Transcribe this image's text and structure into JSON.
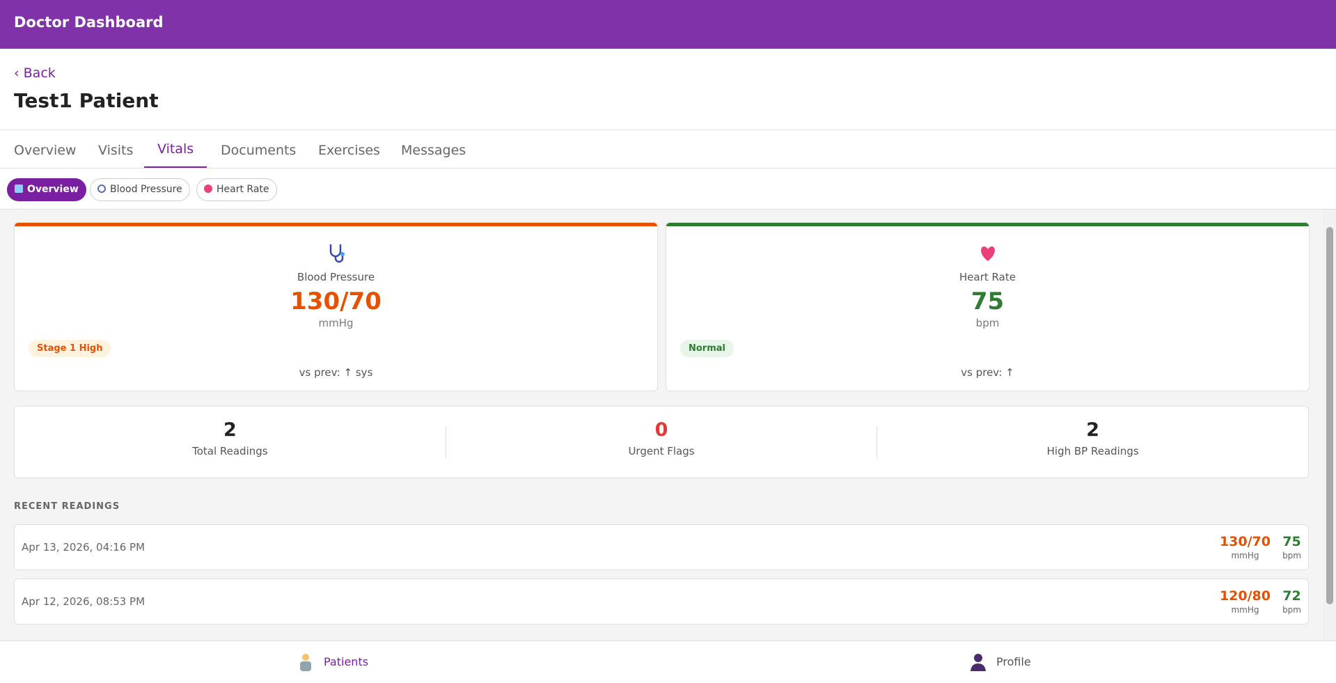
{
  "header": {
    "title": "Doctor Dashboard"
  },
  "back": "‹ Back",
  "patient_name": "Test1 Patient",
  "tabs": [
    "Overview",
    "Visits",
    "Vitals",
    "Documents",
    "Exercises",
    "Messages"
  ],
  "active_tab": "Vitals",
  "chips": [
    "Overview",
    "Blood Pressure",
    "Heart Rate"
  ],
  "cards": [
    {
      "label": "Blood Pressure",
      "value": "130/70",
      "unit": "mmHg",
      "badge": "Stage 1 High",
      "compare": "vs prev: ↑ sys"
    },
    {
      "label": "Heart Rate",
      "value": "75",
      "unit": "bpm",
      "badge": "Normal",
      "compare": "vs prev: ↑"
    }
  ],
  "stats": [
    {
      "value": "2",
      "label": "Total Readings"
    },
    {
      "value": "0",
      "label": "Urgent Flags"
    },
    {
      "value": "2",
      "label": "High BP Readings"
    }
  ],
  "recent_title": "RECENT READINGS",
  "readings": [
    {
      "date": "Apr 13, 2026, 04:16 PM",
      "bp": "130/70",
      "bp_unit": "mmHg",
      "hr": "75",
      "hr_unit": "bpm"
    },
    {
      "date": "Apr 12, 2026, 08:53 PM",
      "bp": "120/80",
      "bp_unit": "mmHg",
      "hr": "72",
      "hr_unit": "bpm"
    }
  ],
  "nav": [
    "Patients",
    "Profile"
  ]
}
